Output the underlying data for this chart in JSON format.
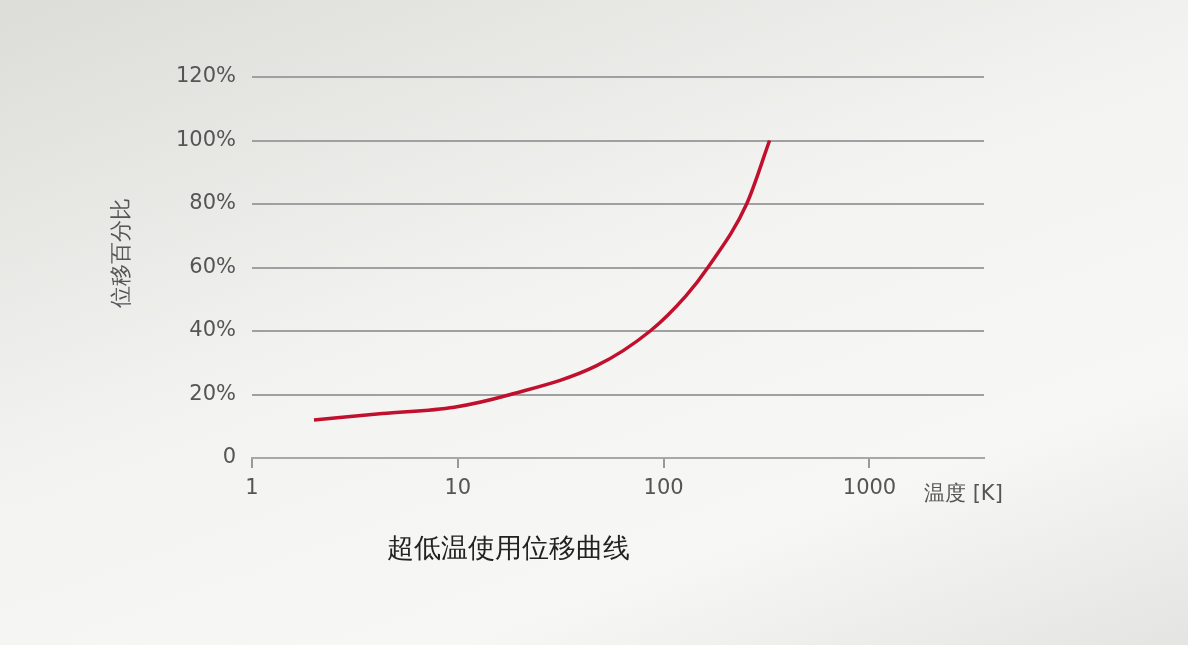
{
  "chart_data": {
    "type": "line",
    "title": "超低温使用位移曲线",
    "xlabel": "温度 [K]",
    "ylabel": "位移百分比",
    "log": "x",
    "grid": "y",
    "marker": "none",
    "line_style": "solid",
    "xlim": [
      1,
      3600
    ],
    "xticks": [
      1,
      10,
      100,
      1000
    ],
    "ylim": [
      0,
      120
    ],
    "yticks": [
      {
        "value": 0,
        "label": "0"
      },
      {
        "value": 20,
        "label": "20%"
      },
      {
        "value": 40,
        "label": "40%"
      },
      {
        "value": 60,
        "label": "60%"
      },
      {
        "value": 80,
        "label": "80%"
      },
      {
        "value": 100,
        "label": "100%"
      },
      {
        "value": 120,
        "label": "120%"
      }
    ],
    "series": [
      {
        "color": "#c0102e",
        "x": [
          2,
          4.3,
          9.6,
          18,
          47,
          86,
          128,
          164,
          253,
          327
        ],
        "values": [
          12,
          14,
          16,
          20,
          29,
          40,
          51,
          60,
          80,
          100
        ]
      }
    ]
  }
}
